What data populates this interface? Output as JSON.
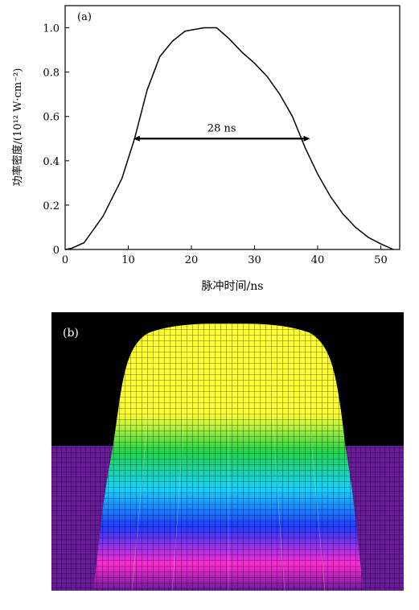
{
  "chart_data": [
    {
      "type": "line",
      "panel_label": "(a)",
      "xlabel": "脉冲时间/ns",
      "ylabel": "功率密度/(10¹² W·cm⁻²)",
      "xlim": [
        0,
        53
      ],
      "ylim": [
        0,
        1.1
      ],
      "x_ticks": [
        "0",
        "10",
        "20",
        "30",
        "40",
        "50"
      ],
      "y_ticks": [
        "0",
        "0.2",
        "0.4",
        "0.6",
        "0.8",
        "1.0"
      ],
      "grid": false,
      "series": [
        {
          "x": [
            0,
            1,
            3,
            6,
            9,
            11,
            13,
            15,
            17,
            19,
            21,
            22,
            23,
            24,
            26,
            28,
            30,
            32,
            34,
            36,
            38,
            40,
            42,
            44,
            46,
            48,
            50,
            52
          ],
          "values": [
            0,
            0.005,
            0.03,
            0.15,
            0.32,
            0.5,
            0.72,
            0.87,
            0.94,
            0.985,
            0.995,
            1.0,
            1.0,
            1.0,
            0.95,
            0.89,
            0.84,
            0.78,
            0.7,
            0.6,
            0.46,
            0.34,
            0.24,
            0.16,
            0.1,
            0.055,
            0.025,
            0.0
          ]
        }
      ],
      "annotations": [
        {
          "text": "28 ns",
          "x_start": 10.8,
          "x_end": 38.8,
          "y": 0.5
        }
      ]
    },
    {
      "type": "other",
      "panel_label": "(b)",
      "description_colors": [
        "#6a1b9a",
        "#ff2ad4",
        "#1f3bff",
        "#13d3ff",
        "#21d44a",
        "#ffff33"
      ]
    }
  ]
}
